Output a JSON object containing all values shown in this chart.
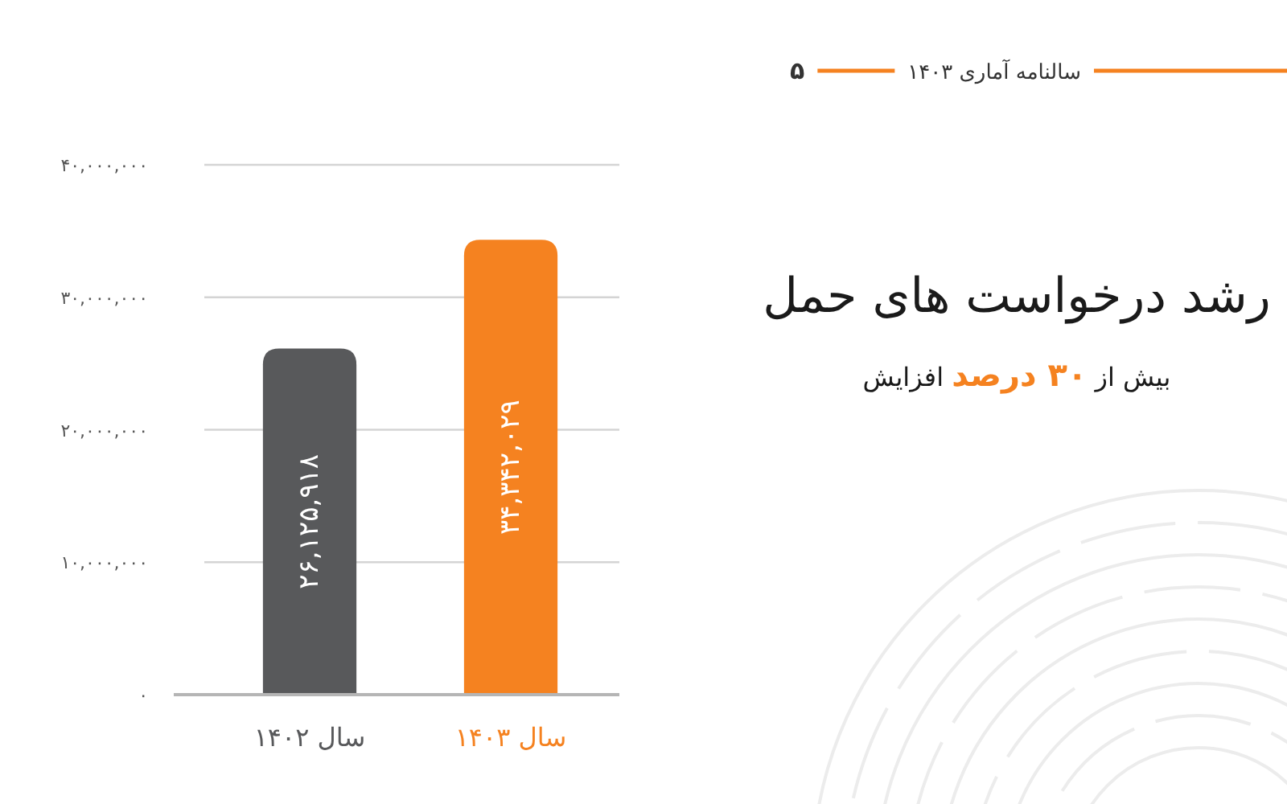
{
  "chart_data": {
    "type": "bar",
    "title": "رشد درخواست های حمل",
    "subtitle": "بیش از **۳۰ درصد** افزایش",
    "categories": [
      "سال ۱۴۰۲",
      "سال ۱۴۰۳"
    ],
    "values": [
      26125918,
      34342029
    ],
    "colors": [
      "#58595b",
      "#f58220"
    ],
    "value_labels": [
      "۲۶,۱۲۵,۹۱۸",
      "۳۴,۳۴۲,۰۲۹"
    ],
    "ylim": [
      0,
      40000000
    ],
    "yticks": [
      {
        "value": 0,
        "label": "۰"
      },
      {
        "value": 10000000,
        "label": "۱۰,۰۰۰,۰۰۰"
      },
      {
        "value": 20000000,
        "label": "۲۰,۰۰۰,۰۰۰"
      },
      {
        "value": 30000000,
        "label": "۳۰,۰۰۰,۰۰۰"
      },
      {
        "value": 40000000,
        "label": "۴۰,۰۰۰,۰۰۰"
      }
    ],
    "grid": "y",
    "annotations": [
      "سالنامه آماری ۱۴۰۳",
      "۵"
    ]
  }
}
